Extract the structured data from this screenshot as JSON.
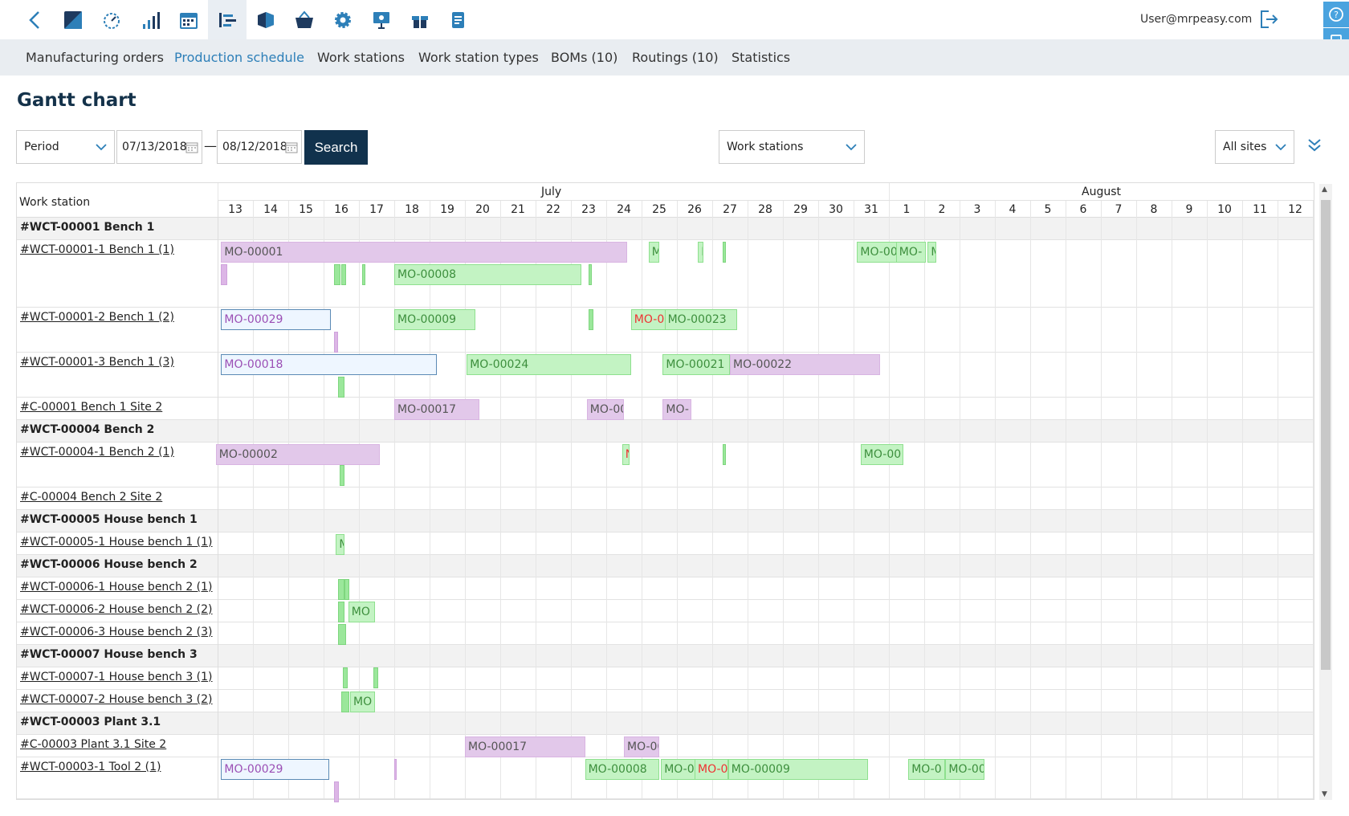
{
  "user": {
    "email": "User@mrpeasy.com"
  },
  "nav_icons": [
    "back-icon",
    "logo-icon",
    "dashboard-icon",
    "stats-icon",
    "calendar-icon",
    "production-icon",
    "stock-icon",
    "basket-icon",
    "settings-icon",
    "presentation-icon",
    "gift-icon",
    "documents-icon"
  ],
  "subnav": {
    "tabs": [
      "Manufacturing orders",
      "Production schedule",
      "Work stations",
      "Work station types",
      "BOMs (10)",
      "Routings (10)",
      "Statistics"
    ],
    "active": "Production schedule"
  },
  "page_title": "Gantt chart",
  "filters": {
    "period": "Period",
    "date_from": "07/13/2018",
    "date_to": "08/12/2018",
    "separator": "—",
    "search_label": "Search",
    "group_by": "Work stations",
    "sites": "All sites"
  },
  "gantt": {
    "column_header": "Work station",
    "months": [
      {
        "name": "July"
      },
      {
        "name": "August"
      }
    ],
    "days": [
      "13",
      "14",
      "15",
      "16",
      "17",
      "18",
      "19",
      "20",
      "21",
      "22",
      "23",
      "24",
      "25",
      "26",
      "27",
      "28",
      "29",
      "30",
      "31",
      "1",
      "2",
      "3",
      "4",
      "5",
      "6",
      "7",
      "8",
      "9",
      "10",
      "11",
      "12"
    ],
    "rows": [
      {
        "label": "#WCT-00001 Bench 1",
        "type": "group"
      },
      {
        "label": "#WCT-00001-1 Bench 1 (1)",
        "type": "ws"
      },
      {
        "label": "#WCT-00001-2 Bench 1 (2)",
        "type": "ws"
      },
      {
        "label": "#WCT-00001-3 Bench 1 (3)",
        "type": "ws"
      },
      {
        "label": "#C-00001 Bench 1 Site 2",
        "type": "ws"
      },
      {
        "label": "#WCT-00004 Bench 2",
        "type": "group"
      },
      {
        "label": "#WCT-00004-1 Bench 2 (1)",
        "type": "ws"
      },
      {
        "label": "#C-00004 Bench 2 Site 2",
        "type": "ws"
      },
      {
        "label": "#WCT-00005 House bench 1",
        "type": "group"
      },
      {
        "label": "#WCT-00005-1 House bench 1 (1)",
        "type": "ws"
      },
      {
        "label": "#WCT-00006 House bench 2",
        "type": "group"
      },
      {
        "label": "#WCT-00006-1 House bench 2 (1)",
        "type": "ws"
      },
      {
        "label": "#WCT-00006-2 House bench 2 (2)",
        "type": "ws"
      },
      {
        "label": "#WCT-00006-3 House bench 2 (3)",
        "type": "ws"
      },
      {
        "label": "#WCT-00007 House bench 3",
        "type": "group"
      },
      {
        "label": "#WCT-00007-1 House bench 3 (1)",
        "type": "ws"
      },
      {
        "label": "#WCT-00007-2 House bench 3 (2)",
        "type": "ws"
      },
      {
        "label": "#WCT-00003 Plant 3.1",
        "type": "group"
      },
      {
        "label": "#C-00003 Plant 3.1 Site 2",
        "type": "ws"
      },
      {
        "label": "#WCT-00003-1 Tool 2 (1)",
        "type": "ws"
      }
    ],
    "bars": [
      {
        "row": 1,
        "start": 0.1,
        "end": 11.6,
        "label": "MO-00001",
        "color": "purple"
      },
      {
        "row": 1,
        "start": 12.2,
        "end": 12.5,
        "label": "M",
        "color": "green"
      },
      {
        "row": 1,
        "start": 13.6,
        "end": 13.75,
        "label": "I",
        "color": "green"
      },
      {
        "row": 1,
        "start": 18.1,
        "end": 19.3,
        "label": "MO-00",
        "color": "green"
      },
      {
        "row": 1,
        "start": 19.2,
        "end": 20.05,
        "label": "MO-",
        "color": "green"
      },
      {
        "row": 1,
        "start": 20.1,
        "end": 20.35,
        "label": "M",
        "color": "green"
      },
      {
        "row": 1,
        "start": 5.0,
        "end": 10.3,
        "label": "MO-00008",
        "color": "green",
        "sub": 1
      },
      {
        "row": 2,
        "start": 0.1,
        "end": 3.2,
        "label": "MO-00029",
        "color": "blue"
      },
      {
        "row": 2,
        "start": 5.0,
        "end": 7.3,
        "label": "MO-00009",
        "color": "green"
      },
      {
        "row": 2,
        "start": 11.7,
        "end": 12.7,
        "label": "MO-0",
        "color": "green",
        "red": true
      },
      {
        "row": 2,
        "start": 12.65,
        "end": 14.7,
        "label": "MO-00023",
        "color": "green"
      },
      {
        "row": 3,
        "start": 0.1,
        "end": 6.2,
        "label": "MO-00018",
        "color": "blue"
      },
      {
        "row": 3,
        "start": 7.05,
        "end": 11.7,
        "label": "MO-00024",
        "color": "green"
      },
      {
        "row": 3,
        "start": 12.6,
        "end": 14.5,
        "label": "MO-00021",
        "color": "green"
      },
      {
        "row": 3,
        "start": 14.5,
        "end": 18.75,
        "label": "MO-00022",
        "color": "purple"
      },
      {
        "row": 4,
        "start": 5.0,
        "end": 7.4,
        "label": "MO-00017",
        "color": "purple"
      },
      {
        "row": 4,
        "start": 10.45,
        "end": 11.5,
        "label": "MO-00",
        "color": "purple"
      },
      {
        "row": 4,
        "start": 12.6,
        "end": 13.4,
        "label": "MO-",
        "color": "purple"
      },
      {
        "row": 6,
        "start": -0.05,
        "end": 4.6,
        "label": "MO-00002",
        "color": "purple"
      },
      {
        "row": 6,
        "start": 11.45,
        "end": 11.65,
        "label": "N",
        "color": "green",
        "red": true
      },
      {
        "row": 6,
        "start": 18.2,
        "end": 19.4,
        "label": "MO-00",
        "color": "green"
      },
      {
        "row": 9,
        "start": 3.35,
        "end": 3.6,
        "label": "M",
        "color": "green"
      },
      {
        "row": 12,
        "start": 3.7,
        "end": 4.45,
        "label": "MO",
        "color": "green"
      },
      {
        "row": 16,
        "start": 3.75,
        "end": 4.45,
        "label": "MO",
        "color": "green"
      },
      {
        "row": 18,
        "start": 7.0,
        "end": 10.4,
        "label": "MO-00017",
        "color": "purple"
      },
      {
        "row": 18,
        "start": 11.5,
        "end": 12.5,
        "label": "MO-00",
        "color": "purple"
      },
      {
        "row": 19,
        "start": 0.1,
        "end": 3.15,
        "label": "MO-00029",
        "color": "blue"
      },
      {
        "row": 19,
        "start": 10.4,
        "end": 12.5,
        "label": "MO-00008",
        "color": "green"
      },
      {
        "row": 19,
        "start": 12.55,
        "end": 13.6,
        "label": "MO-00",
        "color": "green"
      },
      {
        "row": 19,
        "start": 13.5,
        "end": 14.45,
        "label": "MO-0",
        "color": "green",
        "red": true
      },
      {
        "row": 19,
        "start": 14.45,
        "end": 18.4,
        "label": "MO-00009",
        "color": "green"
      },
      {
        "row": 19,
        "start": 19.55,
        "end": 20.6,
        "label": "MO-0",
        "color": "green"
      },
      {
        "row": 19,
        "start": 20.6,
        "end": 21.7,
        "label": "MO-00",
        "color": "green"
      }
    ]
  },
  "colors": {
    "accent": "#2d7fb8",
    "search_bg": "#11324d",
    "purple": "#e2c8ea",
    "green": "#c3f3c3",
    "blue_border": "#5b8ab5"
  }
}
